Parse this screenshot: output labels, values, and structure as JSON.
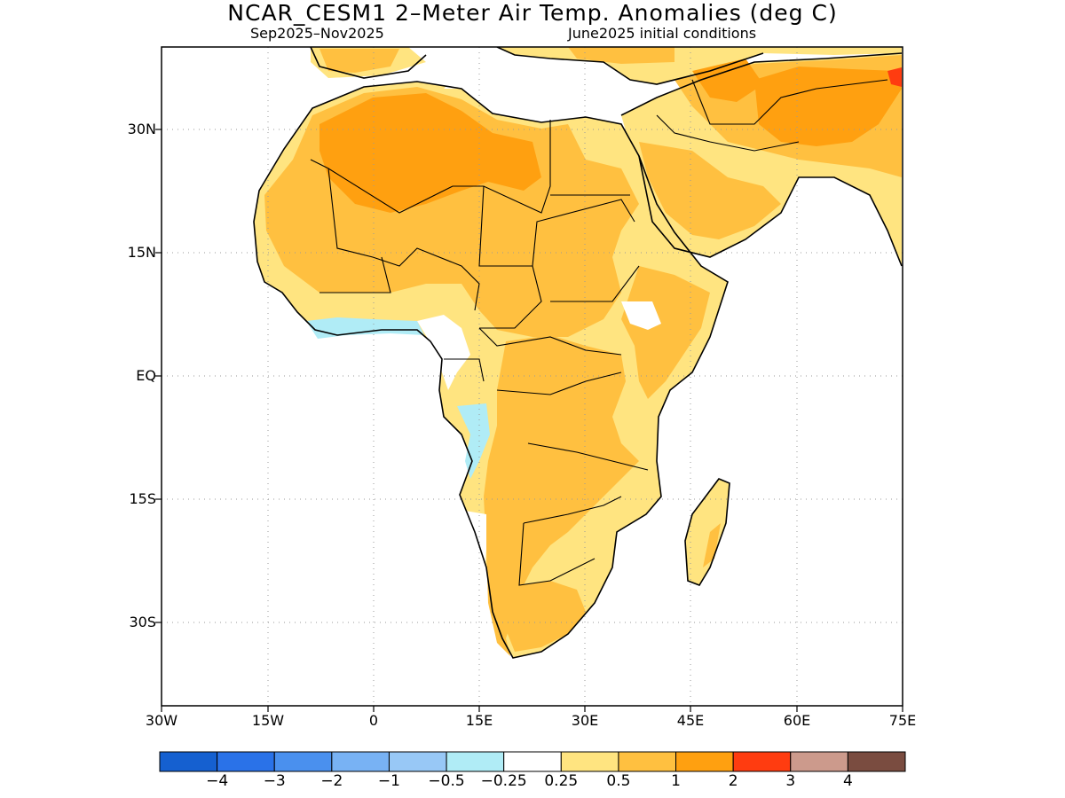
{
  "title": "NCAR_CESM1 2–Meter Air Temp. Anomalies (deg C)",
  "subtitle_left": "Sep2025–Nov2025",
  "subtitle_right": "June2025 initial conditions",
  "lat_labels": [
    "30N",
    "15N",
    "EQ",
    "15S",
    "30S"
  ],
  "lon_labels": [
    "30W",
    "15W",
    "0",
    "15E",
    "30E",
    "45E",
    "60E",
    "75E"
  ],
  "colorbar": {
    "colors": [
      "#1560d0",
      "#2a72e8",
      "#4a90ee",
      "#78b2f4",
      "#98c8f6",
      "#b0ecf6",
      "#ffffff",
      "#ffe480",
      "#ffc040",
      "#ffa010",
      "#ff3c10",
      "#cc9a8c",
      "#7a4c40"
    ],
    "labels": [
      "−4",
      "−3",
      "−2",
      "−1",
      "−0.5",
      "−0.25",
      "0.25",
      "0.5",
      "1",
      "2",
      "3",
      "4"
    ]
  },
  "map": {
    "region": "Africa and Middle East",
    "fill_colors": {
      "level_0_25": "#ffe480",
      "level_0_5": "#ffc040",
      "level_1": "#ffa010",
      "level_2": "#ff3c10",
      "neg_0_25": "#b0ecf6"
    }
  }
}
